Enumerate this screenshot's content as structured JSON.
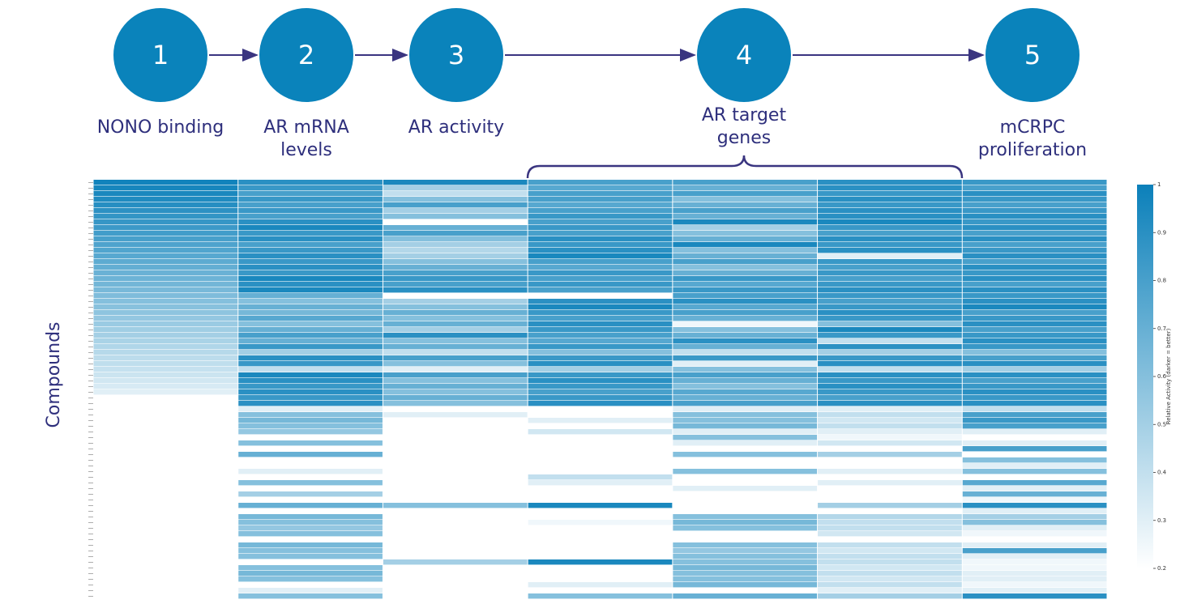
{
  "steps": [
    {
      "number": "1",
      "label": [
        "NONO binding"
      ]
    },
    {
      "number": "2",
      "label": [
        "AR mRNA",
        "levels"
      ]
    },
    {
      "number": "3",
      "label": [
        "AR activity"
      ]
    },
    {
      "number": "4",
      "label": [
        "AR target",
        "genes"
      ]
    },
    {
      "number": "5",
      "label": [
        "mCRPC",
        "proliferation"
      ]
    }
  ],
  "chart_data": {
    "type": "heatmap",
    "ylabel": "Compounds",
    "colorbar_label": "Relative Activity (darker = better)",
    "colormap": [
      "#ffffff",
      "#0b80ba"
    ],
    "clim": [
      0.2,
      1.0
    ],
    "cticks": [
      0.2,
      0.3,
      0.4,
      0.5,
      0.6,
      0.7,
      0.8,
      0.9,
      1.0
    ],
    "values": [
      [
        0.98,
        0.9,
        0.95,
        0.8,
        0.8,
        0.9,
        0.85
      ],
      [
        0.96,
        0.85,
        0.5,
        0.75,
        0.7,
        0.9,
        0.8
      ],
      [
        0.95,
        0.8,
        0.4,
        0.8,
        0.8,
        0.85,
        0.9
      ],
      [
        0.93,
        0.85,
        0.6,
        0.8,
        0.6,
        0.9,
        0.85
      ],
      [
        0.91,
        0.8,
        0.8,
        0.75,
        0.7,
        0.85,
        0.8
      ],
      [
        0.89,
        0.85,
        0.5,
        0.8,
        0.8,
        0.9,
        0.85
      ],
      [
        0.87,
        0.8,
        0.6,
        0.85,
        0.7,
        0.9,
        0.9
      ],
      [
        0.86,
        0.9,
        0.2,
        0.8,
        0.95,
        0.95,
        0.85
      ],
      [
        0.84,
        0.95,
        0.7,
        0.85,
        0.5,
        0.85,
        0.9
      ],
      [
        0.82,
        0.85,
        0.8,
        0.8,
        0.6,
        0.8,
        0.8
      ],
      [
        0.8,
        0.9,
        0.6,
        0.9,
        0.7,
        0.9,
        0.9
      ],
      [
        0.78,
        0.8,
        0.5,
        0.85,
        0.95,
        0.85,
        0.8
      ],
      [
        0.77,
        0.85,
        0.45,
        0.9,
        0.6,
        0.9,
        0.85
      ],
      [
        0.75,
        0.9,
        0.5,
        0.95,
        0.7,
        0.3,
        0.9
      ],
      [
        0.73,
        0.85,
        0.6,
        0.8,
        0.8,
        0.85,
        0.8
      ],
      [
        0.71,
        0.9,
        0.7,
        0.75,
        0.6,
        0.8,
        0.9
      ],
      [
        0.69,
        0.85,
        0.8,
        0.85,
        0.7,
        0.85,
        0.85
      ],
      [
        0.68,
        0.95,
        0.85,
        0.8,
        0.85,
        0.8,
        0.9
      ],
      [
        0.66,
        0.9,
        0.8,
        0.85,
        0.75,
        0.85,
        0.8
      ],
      [
        0.64,
        0.95,
        0.9,
        0.8,
        0.85,
        0.9,
        0.9
      ],
      [
        0.62,
        0.7,
        0.2,
        0.2,
        0.8,
        0.85,
        0.85
      ],
      [
        0.6,
        0.6,
        0.5,
        0.9,
        0.9,
        0.8,
        0.9
      ],
      [
        0.59,
        0.7,
        0.6,
        0.95,
        0.75,
        0.85,
        0.95
      ],
      [
        0.57,
        0.65,
        0.7,
        0.85,
        0.8,
        0.9,
        0.8
      ],
      [
        0.55,
        0.75,
        0.6,
        0.8,
        0.7,
        0.85,
        0.85
      ],
      [
        0.53,
        0.6,
        0.7,
        0.9,
        0.25,
        0.6,
        0.9
      ],
      [
        0.51,
        0.7,
        0.5,
        0.85,
        0.6,
        0.95,
        0.8
      ],
      [
        0.5,
        0.8,
        0.9,
        0.8,
        0.7,
        0.85,
        0.85
      ],
      [
        0.48,
        0.7,
        0.6,
        0.75,
        0.9,
        0.4,
        0.9
      ],
      [
        0.46,
        0.85,
        0.7,
        0.85,
        0.7,
        0.9,
        0.85
      ],
      [
        0.44,
        0.5,
        0.4,
        0.6,
        0.4,
        0.5,
        0.6
      ],
      [
        0.42,
        0.9,
        0.8,
        0.85,
        0.85,
        0.85,
        0.8
      ],
      [
        0.41,
        0.85,
        0.6,
        0.9,
        0.3,
        0.9,
        0.9
      ],
      [
        0.39,
        0.4,
        0.3,
        0.5,
        0.6,
        0.4,
        0.5
      ],
      [
        0.37,
        0.95,
        0.8,
        0.85,
        0.8,
        0.9,
        0.9
      ],
      [
        0.35,
        0.9,
        0.6,
        0.9,
        0.7,
        0.85,
        0.8
      ],
      [
        0.33,
        0.85,
        0.7,
        0.85,
        0.6,
        0.9,
        0.85
      ],
      [
        0.3,
        0.9,
        0.6,
        0.8,
        0.75,
        0.85,
        0.9
      ],
      [
        0.2,
        0.85,
        0.7,
        0.85,
        0.7,
        0.8,
        0.85
      ],
      [
        0.2,
        0.9,
        0.6,
        0.9,
        0.8,
        0.9,
        0.9
      ],
      [
        0.2,
        0.3,
        0.2,
        0.2,
        0.3,
        0.3,
        0.4
      ],
      [
        0.2,
        0.6,
        0.3,
        0.2,
        0.6,
        0.4,
        0.8
      ],
      [
        0.2,
        0.65,
        0.2,
        0.3,
        0.6,
        0.35,
        0.85
      ],
      [
        0.2,
        0.6,
        0.2,
        0.2,
        0.65,
        0.4,
        0.8
      ],
      [
        0.2,
        0.55,
        0.2,
        0.35,
        0.3,
        0.3,
        0.3
      ],
      [
        0.2,
        0.2,
        0.2,
        0.2,
        0.6,
        0.25,
        0.2
      ],
      [
        0.2,
        0.6,
        0.2,
        0.2,
        0.3,
        0.35,
        0.3
      ],
      [
        0.2,
        0.2,
        0.2,
        0.2,
        0.2,
        0.2,
        0.8
      ],
      [
        0.2,
        0.7,
        0.2,
        0.2,
        0.6,
        0.5,
        0.2
      ],
      [
        0.2,
        0.2,
        0.2,
        0.2,
        0.2,
        0.2,
        0.6
      ],
      [
        0.2,
        0.2,
        0.2,
        0.2,
        0.2,
        0.2,
        0.3
      ],
      [
        0.2,
        0.3,
        0.2,
        0.2,
        0.6,
        0.3,
        0.6
      ],
      [
        0.2,
        0.2,
        0.2,
        0.4,
        0.2,
        0.2,
        0.2
      ],
      [
        0.2,
        0.6,
        0.2,
        0.3,
        0.2,
        0.3,
        0.75
      ],
      [
        0.2,
        0.2,
        0.2,
        0.2,
        0.3,
        0.2,
        0.3
      ],
      [
        0.2,
        0.5,
        0.2,
        0.2,
        0.2,
        0.2,
        0.7
      ],
      [
        0.2,
        0.2,
        0.2,
        0.2,
        0.2,
        0.2,
        0.25
      ],
      [
        0.2,
        0.7,
        0.6,
        0.95,
        0.2,
        0.5,
        0.9
      ],
      [
        0.2,
        0.2,
        0.2,
        0.2,
        0.2,
        0.2,
        0.3
      ],
      [
        0.2,
        0.65,
        0.2,
        0.2,
        0.6,
        0.45,
        0.5
      ],
      [
        0.2,
        0.6,
        0.2,
        0.25,
        0.65,
        0.4,
        0.6
      ],
      [
        0.2,
        0.55,
        0.2,
        0.2,
        0.6,
        0.4,
        0.3
      ],
      [
        0.2,
        0.6,
        0.2,
        0.2,
        0.2,
        0.35,
        0.25
      ],
      [
        0.2,
        0.2,
        0.2,
        0.2,
        0.2,
        0.2,
        0.2
      ],
      [
        0.2,
        0.65,
        0.2,
        0.2,
        0.6,
        0.4,
        0.3
      ],
      [
        0.2,
        0.6,
        0.2,
        0.2,
        0.55,
        0.35,
        0.8
      ],
      [
        0.2,
        0.6,
        0.2,
        0.2,
        0.6,
        0.4,
        0.3
      ],
      [
        0.2,
        0.2,
        0.5,
        0.95,
        0.6,
        0.4,
        0.25
      ],
      [
        0.2,
        0.6,
        0.2,
        0.2,
        0.65,
        0.35,
        0.25
      ],
      [
        0.2,
        0.65,
        0.2,
        0.2,
        0.6,
        0.4,
        0.3
      ],
      [
        0.2,
        0.6,
        0.2,
        0.2,
        0.6,
        0.35,
        0.3
      ],
      [
        0.2,
        0.2,
        0.2,
        0.3,
        0.65,
        0.4,
        0.25
      ],
      [
        0.2,
        0.3,
        0.2,
        0.2,
        0.2,
        0.3,
        0.3
      ],
      [
        0.2,
        0.6,
        0.2,
        0.6,
        0.7,
        0.5,
        0.9
      ]
    ]
  }
}
